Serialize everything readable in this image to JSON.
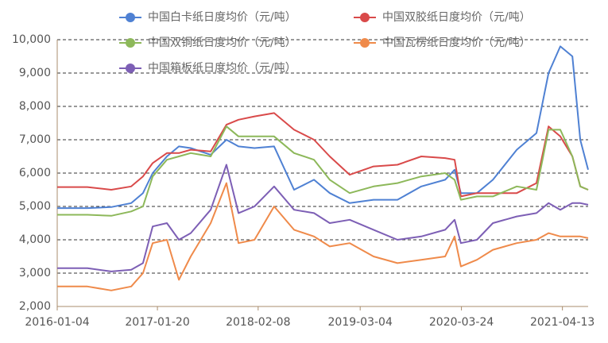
{
  "chart_data": {
    "type": "line",
    "x": [
      "2016-01-04",
      "2016-04-28",
      "2016-07-28",
      "2016-10-12",
      "2016-11-26",
      "2017-01-02",
      "2017-02-25",
      "2017-04-12",
      "2017-05-27",
      "2017-08-11",
      "2017-10-10",
      "2017-11-25",
      "2018-01-25",
      "2018-04-10",
      "2018-06-25",
      "2018-09-09",
      "2018-11-08",
      "2019-01-23",
      "2019-04-24",
      "2019-07-24",
      "2019-10-23",
      "2020-01-22",
      "2020-02-27",
      "2020-03-22",
      "2020-05-22",
      "2020-07-22",
      "2020-10-21",
      "2021-01-04",
      "2021-02-19",
      "2021-04-05",
      "2021-05-21",
      "2021-06-20",
      "2021-07-20"
    ],
    "series": [
      {
        "name": "中国白卡纸日度均价（元/吨）",
        "color": "#4f81d3",
        "values": [
          4950,
          4950,
          4980,
          5100,
          5400,
          6000,
          6500,
          6800,
          6750,
          6550,
          7000,
          6800,
          6750,
          6800,
          5500,
          5800,
          5400,
          5100,
          5200,
          5200,
          5600,
          5800,
          6100,
          5400,
          5400,
          5800,
          6700,
          7200,
          9000,
          9800,
          9500,
          7000,
          6100
        ]
      },
      {
        "name": "中国双胶纸日度均价（元/吨）",
        "color": "#d94a4a",
        "values": [
          5580,
          5580,
          5500,
          5600,
          5900,
          6300,
          6600,
          6600,
          6700,
          6650,
          7450,
          7600,
          7700,
          7800,
          7300,
          7000,
          6500,
          5950,
          6200,
          6250,
          6500,
          6450,
          6400,
          5300,
          5400,
          5400,
          5400,
          5700,
          7400,
          7100,
          6500,
          5600,
          5500
        ]
      },
      {
        "name": "中国双铜纸日度均价（元/吨）",
        "color": "#8db85a",
        "values": [
          4750,
          4750,
          4720,
          4850,
          5000,
          5900,
          6400,
          6500,
          6600,
          6500,
          7400,
          7100,
          7100,
          7100,
          6600,
          6400,
          5800,
          5400,
          5600,
          5700,
          5900,
          6000,
          5800,
          5200,
          5300,
          5300,
          5600,
          5500,
          7300,
          7300,
          6500,
          5600,
          5500
        ]
      },
      {
        "name": "中国瓦楞纸日度均价（元/吨）",
        "color": "#ef8a4a",
        "values": [
          2600,
          2600,
          2480,
          2600,
          3000,
          3900,
          4000,
          2800,
          3500,
          4500,
          5700,
          3900,
          4000,
          5000,
          4300,
          4100,
          3800,
          3900,
          3500,
          3300,
          3400,
          3500,
          4100,
          3200,
          3400,
          3700,
          3900,
          4000,
          4200,
          4100,
          4100,
          4100,
          4050
        ]
      },
      {
        "name": "中国箱板纸日度均价（元/吨）",
        "color": "#7d5fb5",
        "values": [
          3150,
          3150,
          3050,
          3100,
          3300,
          4400,
          4500,
          4000,
          4200,
          4900,
          6250,
          4800,
          5000,
          5600,
          4900,
          4800,
          4500,
          4600,
          4300,
          4000,
          4100,
          4300,
          4600,
          3900,
          4000,
          4500,
          4700,
          4800,
          5100,
          4900,
          5100,
          5100,
          5050
        ]
      }
    ],
    "xlim": [
      "2016-01-04",
      "2021-07-20"
    ],
    "xticks": [
      "2016-01-04",
      "2017-01-20",
      "2018-02-08",
      "2019-03-04",
      "2020-03-24",
      "2021-04-13"
    ],
    "ylim": [
      2000,
      10000
    ],
    "yticks": [
      {
        "value": 2000,
        "label": "2,000"
      },
      {
        "value": 3000,
        "label": "3,000"
      },
      {
        "value": 4000,
        "label": "4,000"
      },
      {
        "value": 5000,
        "label": "5,000"
      },
      {
        "value": 6000,
        "label": "6,000"
      },
      {
        "value": 7000,
        "label": "7,000"
      },
      {
        "value": 8000,
        "label": "8,000"
      },
      {
        "value": 9000,
        "label": "9,000"
      },
      {
        "value": 10000,
        "label": "10,000"
      }
    ],
    "grid": true
  }
}
